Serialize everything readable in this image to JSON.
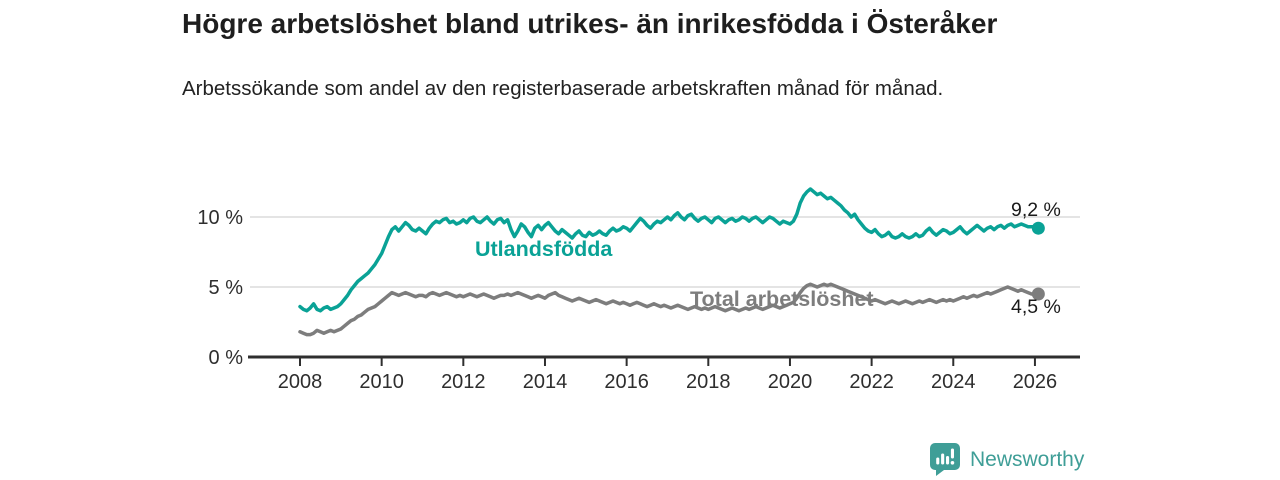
{
  "header": {
    "title": "Högre arbetslöshet bland utrikes- än inrikesfödda i Österåker",
    "subtitle": "Arbetssökande som andel av den registerbaserade arbetskraften månad för månad."
  },
  "chart_data": {
    "type": "line",
    "title": "Högre arbetslöshet bland utrikes- än inrikesfödda i Österåker",
    "subtitle": "Arbetssökande som andel av den registerbaserade arbetskraften månad för månad.",
    "x_unit": "month",
    "x_start_year": 2008,
    "x_step_months": 1,
    "x_ticks": [
      "2008",
      "2010",
      "2012",
      "2014",
      "2016",
      "2018",
      "2020",
      "2022",
      "2024",
      "2026"
    ],
    "y_ticks": [
      {
        "value": 0,
        "label": "0 %"
      },
      {
        "value": 5,
        "label": "5 %"
      },
      {
        "value": 10,
        "label": "10 %"
      }
    ],
    "ylim": [
      0,
      12.6
    ],
    "grid": "horizontal",
    "legend_position": "inline-labels",
    "axis_color": "#2f2f2f",
    "grid_color": "#dcdcdc",
    "tick_label_color": "#2e2e2e",
    "series": [
      {
        "name": "Utlandsfödda",
        "color": "#0aa296",
        "end_label": "9,2 %",
        "end_value": 9.2,
        "values": [
          3.6,
          3.4,
          3.3,
          3.5,
          3.8,
          3.4,
          3.3,
          3.5,
          3.6,
          3.4,
          3.5,
          3.6,
          3.8,
          4.1,
          4.4,
          4.8,
          5.1,
          5.4,
          5.6,
          5.8,
          6.0,
          6.3,
          6.6,
          7.0,
          7.4,
          8.0,
          8.6,
          9.1,
          9.3,
          9.0,
          9.3,
          9.6,
          9.4,
          9.1,
          9.0,
          9.2,
          9.0,
          8.8,
          9.2,
          9.5,
          9.7,
          9.6,
          9.8,
          9.9,
          9.6,
          9.7,
          9.5,
          9.6,
          9.8,
          9.6,
          9.9,
          10.0,
          9.7,
          9.6,
          9.8,
          10.0,
          9.7,
          9.5,
          9.8,
          9.9,
          9.6,
          9.8,
          9.1,
          8.6,
          9.0,
          9.5,
          9.3,
          8.9,
          8.6,
          9.2,
          9.4,
          9.1,
          9.4,
          9.6,
          9.3,
          9.0,
          8.8,
          9.1,
          8.9,
          8.7,
          8.5,
          8.8,
          9.0,
          8.7,
          8.6,
          8.9,
          8.7,
          8.8,
          9.0,
          8.8,
          8.7,
          9.0,
          9.2,
          9.0,
          9.1,
          9.3,
          9.2,
          9.0,
          9.3,
          9.6,
          9.9,
          9.7,
          9.4,
          9.2,
          9.5,
          9.7,
          9.6,
          9.8,
          10.0,
          9.8,
          10.1,
          10.3,
          10.0,
          9.8,
          10.1,
          10.2,
          9.9,
          9.7,
          9.9,
          10.0,
          9.8,
          9.6,
          9.9,
          10.0,
          9.8,
          9.6,
          9.8,
          9.9,
          9.7,
          9.8,
          10.0,
          9.9,
          9.7,
          9.9,
          10.0,
          9.8,
          9.6,
          9.8,
          10.0,
          9.9,
          9.7,
          9.5,
          9.7,
          9.6,
          9.5,
          9.7,
          10.2,
          11.0,
          11.5,
          11.8,
          12.0,
          11.8,
          11.6,
          11.7,
          11.5,
          11.3,
          11.4,
          11.2,
          11.0,
          10.8,
          10.5,
          10.3,
          10.0,
          10.2,
          9.8,
          9.5,
          9.2,
          9.0,
          8.9,
          9.1,
          8.8,
          8.6,
          8.7,
          8.9,
          8.6,
          8.5,
          8.6,
          8.8,
          8.6,
          8.5,
          8.6,
          8.8,
          8.6,
          8.7,
          9.0,
          9.2,
          8.9,
          8.7,
          8.9,
          9.1,
          9.0,
          8.8,
          8.9,
          9.1,
          9.3,
          9.0,
          8.8,
          9.0,
          9.2,
          9.4,
          9.2,
          9.0,
          9.2,
          9.3,
          9.1,
          9.3,
          9.4,
          9.2,
          9.4,
          9.5,
          9.3,
          9.4,
          9.5,
          9.4,
          9.3,
          9.3,
          9.3,
          9.2
        ]
      },
      {
        "name": "Total arbetslöshet",
        "color": "#7d7d7d",
        "end_label": "4,5 %",
        "end_value": 4.5,
        "values": [
          1.8,
          1.7,
          1.6,
          1.6,
          1.7,
          1.9,
          1.8,
          1.7,
          1.8,
          1.9,
          1.8,
          1.9,
          2.0,
          2.2,
          2.4,
          2.6,
          2.7,
          2.9,
          3.0,
          3.2,
          3.4,
          3.5,
          3.6,
          3.8,
          4.0,
          4.2,
          4.4,
          4.6,
          4.5,
          4.4,
          4.5,
          4.6,
          4.5,
          4.4,
          4.3,
          4.4,
          4.4,
          4.3,
          4.5,
          4.6,
          4.5,
          4.4,
          4.5,
          4.6,
          4.5,
          4.4,
          4.3,
          4.4,
          4.3,
          4.4,
          4.5,
          4.4,
          4.3,
          4.4,
          4.5,
          4.4,
          4.3,
          4.2,
          4.3,
          4.4,
          4.4,
          4.5,
          4.4,
          4.5,
          4.6,
          4.5,
          4.4,
          4.3,
          4.2,
          4.3,
          4.4,
          4.3,
          4.2,
          4.4,
          4.5,
          4.6,
          4.4,
          4.3,
          4.2,
          4.1,
          4.0,
          4.1,
          4.2,
          4.1,
          4.0,
          3.9,
          4.0,
          4.1,
          4.0,
          3.9,
          3.8,
          3.9,
          4.0,
          3.9,
          3.8,
          3.9,
          3.8,
          3.7,
          3.8,
          3.9,
          3.8,
          3.7,
          3.6,
          3.7,
          3.8,
          3.7,
          3.6,
          3.7,
          3.6,
          3.5,
          3.6,
          3.7,
          3.6,
          3.5,
          3.4,
          3.5,
          3.6,
          3.5,
          3.4,
          3.5,
          3.4,
          3.5,
          3.6,
          3.5,
          3.4,
          3.3,
          3.4,
          3.5,
          3.4,
          3.3,
          3.4,
          3.5,
          3.4,
          3.5,
          3.6,
          3.5,
          3.4,
          3.5,
          3.6,
          3.7,
          3.6,
          3.5,
          3.6,
          3.7,
          3.8,
          3.9,
          4.2,
          4.6,
          4.9,
          5.1,
          5.2,
          5.1,
          5.0,
          5.1,
          5.2,
          5.1,
          5.2,
          5.1,
          5.0,
          4.9,
          4.8,
          4.7,
          4.6,
          4.5,
          4.4,
          4.3,
          4.2,
          4.1,
          4.0,
          4.1,
          4.0,
          3.9,
          3.8,
          3.9,
          4.0,
          3.9,
          3.8,
          3.9,
          4.0,
          3.9,
          3.8,
          3.9,
          4.0,
          3.9,
          4.0,
          4.1,
          4.0,
          3.9,
          4.0,
          4.1,
          4.0,
          4.1,
          4.0,
          4.1,
          4.2,
          4.3,
          4.2,
          4.3,
          4.4,
          4.3,
          4.4,
          4.5,
          4.6,
          4.5,
          4.6,
          4.7,
          4.8,
          4.9,
          5.0,
          4.9,
          4.8,
          4.7,
          4.8,
          4.7,
          4.6,
          4.5,
          4.5,
          4.5
        ]
      }
    ]
  },
  "footer": {
    "brand": "Newsworthy",
    "brand_color": "#3f9e97"
  }
}
